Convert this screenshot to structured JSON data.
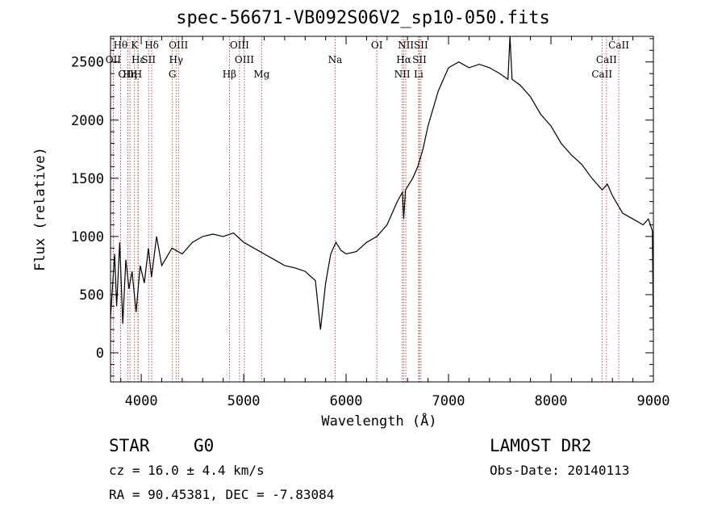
{
  "chart_data": {
    "type": "line",
    "title": "spec-56671-VB092S06V2_sp10-050.fits",
    "xlabel": "Wavelength (Å)",
    "ylabel": "Flux (relative)",
    "xlim": [
      3700,
      9000
    ],
    "ylim": [
      -250,
      2720
    ],
    "xticks": [
      4000,
      5000,
      6000,
      7000,
      8000,
      9000
    ],
    "yticks": [
      0,
      500,
      1000,
      1500,
      2000,
      2500
    ],
    "grid": false,
    "line_color": "#000000",
    "marker_color": "#a52a2a",
    "series": [
      {
        "x": [
          3700,
          3740,
          3760,
          3790,
          3820,
          3850,
          3880,
          3910,
          3950,
          3990,
          4030,
          4070,
          4100,
          4150,
          4200,
          4300,
          4400,
          4500,
          4600,
          4700,
          4800,
          4900,
          5000,
          5100,
          5200,
          5300,
          5400,
          5500,
          5600,
          5700,
          5750,
          5800,
          5850,
          5900,
          5950,
          6000,
          6100,
          6200,
          6300,
          6400,
          6500,
          6550,
          6562,
          6580,
          6650,
          6700,
          6750,
          6800,
          6900,
          7000,
          7100,
          7200,
          7300,
          7400,
          7500,
          7580,
          7600,
          7620,
          7700,
          7800,
          7900,
          8000,
          8100,
          8200,
          8300,
          8400,
          8500,
          8550,
          8600,
          8700,
          8800,
          8900,
          8950,
          8990,
          9000
        ],
        "y": [
          300,
          850,
          400,
          950,
          250,
          800,
          550,
          700,
          350,
          750,
          600,
          900,
          650,
          1000,
          750,
          900,
          850,
          950,
          1000,
          1020,
          1000,
          1030,
          950,
          900,
          850,
          800,
          750,
          730,
          700,
          620,
          200,
          600,
          850,
          950,
          880,
          850,
          870,
          950,
          1000,
          1100,
          1300,
          1380,
          1150,
          1400,
          1500,
          1600,
          1750,
          1950,
          2250,
          2450,
          2500,
          2450,
          2480,
          2450,
          2400,
          2350,
          2720,
          2350,
          2300,
          2200,
          2050,
          1950,
          1800,
          1700,
          1620,
          1500,
          1400,
          1450,
          1350,
          1200,
          1150,
          1100,
          1150,
          1050,
          200
        ]
      }
    ],
    "spectral_lines": [
      {
        "label": "Hθ",
        "wavelength": 3798,
        "row": 0
      },
      {
        "label": "K",
        "wavelength": 3934,
        "row": 0
      },
      {
        "label": "Hδ",
        "wavelength": 4102,
        "row": 0
      },
      {
        "label": "OIII",
        "wavelength": 4363,
        "row": 0
      },
      {
        "label": "OIII",
        "wavelength": 4959,
        "row": 0
      },
      {
        "label": "OI",
        "wavelength": 6300,
        "row": 0
      },
      {
        "label": "NII",
        "wavelength": 6583,
        "row": 0
      },
      {
        "label": "SII",
        "wavelength": 6731,
        "row": 0
      },
      {
        "label": "CaII",
        "wavelength": 8662,
        "row": 0
      },
      {
        "label": "OII",
        "wavelength": 3727,
        "row": 1
      },
      {
        "label": "Hε",
        "wavelength": 3970,
        "row": 1
      },
      {
        "label": "SII",
        "wavelength": 4072,
        "row": 1
      },
      {
        "label": "Hγ",
        "wavelength": 4340,
        "row": 1
      },
      {
        "label": "OIII",
        "wavelength": 5007,
        "row": 1
      },
      {
        "label": "Na",
        "wavelength": 5893,
        "row": 1
      },
      {
        "label": "Hα",
        "wavelength": 6563,
        "row": 1
      },
      {
        "label": "SII",
        "wavelength": 6716,
        "row": 1
      },
      {
        "label": "CaII",
        "wavelength": 8542,
        "row": 1
      },
      {
        "label": "OIII",
        "wavelength": 3869,
        "row": 2
      },
      {
        "label": "Hη",
        "wavelength": 3889,
        "row": 2
      },
      {
        "label": "H",
        "wavelength": 3968,
        "row": 2
      },
      {
        "label": "G",
        "wavelength": 4304,
        "row": 2
      },
      {
        "label": "Hβ",
        "wavelength": 4861,
        "row": 2
      },
      {
        "label": "Mg",
        "wavelength": 5175,
        "row": 2
      },
      {
        "label": "NII",
        "wavelength": 6548,
        "row": 2
      },
      {
        "label": "Li",
        "wavelength": 6708,
        "row": 2
      },
      {
        "label": "CaII",
        "wavelength": 8498,
        "row": 2
      }
    ]
  },
  "info": {
    "object_class": "STAR",
    "subclass": "G0",
    "survey": "LAMOST DR2",
    "redshift": "cz =  16.0 ± 4.4 km/s",
    "obs_date": "Obs-Date: 20140113",
    "coordinates": "RA =  90.45381, DEC =  -7.83084"
  }
}
